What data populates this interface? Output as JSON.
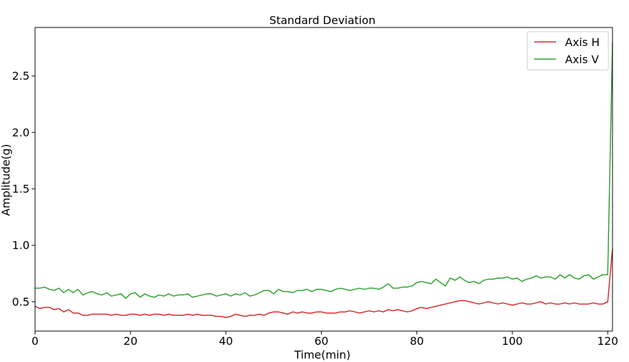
{
  "chart_data": {
    "type": "line",
    "title": "Standard Deviation",
    "xlabel": "Time(min)",
    "ylabel": "Amplitude(g)",
    "xlim": [
      0,
      121
    ],
    "ylim": [
      0.24,
      2.93
    ],
    "xticks": [
      0,
      20,
      40,
      60,
      80,
      100,
      120
    ],
    "yticks": [
      0.5,
      1.0,
      1.5,
      2.0,
      2.5
    ],
    "ytick_labels": [
      "0.5",
      "1.0",
      "1.5",
      "2.0",
      "2.5"
    ],
    "grid": false,
    "legend_position": "top-right",
    "series": [
      {
        "name": "Axis H",
        "color": "#d62728",
        "x": [
          0,
          1,
          2,
          3,
          4,
          5,
          6,
          7,
          8,
          9,
          10,
          11,
          12,
          13,
          14,
          15,
          16,
          17,
          18,
          19,
          20,
          21,
          22,
          23,
          24,
          25,
          26,
          27,
          28,
          29,
          30,
          31,
          32,
          33,
          34,
          35,
          36,
          37,
          38,
          39,
          40,
          41,
          42,
          43,
          44,
          45,
          46,
          47,
          48,
          49,
          50,
          51,
          52,
          53,
          54,
          55,
          56,
          57,
          58,
          59,
          60,
          61,
          62,
          63,
          64,
          65,
          66,
          67,
          68,
          69,
          70,
          71,
          72,
          73,
          74,
          75,
          76,
          77,
          78,
          79,
          80,
          81,
          82,
          83,
          84,
          85,
          86,
          87,
          88,
          89,
          90,
          91,
          92,
          93,
          94,
          95,
          96,
          97,
          98,
          99,
          100,
          101,
          102,
          103,
          104,
          105,
          106,
          107,
          108,
          109,
          110,
          111,
          112,
          113,
          114,
          115,
          116,
          117,
          118,
          119,
          120,
          121
        ],
        "values": [
          0.46,
          0.44,
          0.45,
          0.45,
          0.43,
          0.44,
          0.41,
          0.43,
          0.4,
          0.4,
          0.38,
          0.38,
          0.39,
          0.39,
          0.39,
          0.39,
          0.38,
          0.39,
          0.38,
          0.38,
          0.39,
          0.39,
          0.38,
          0.39,
          0.38,
          0.39,
          0.39,
          0.38,
          0.39,
          0.38,
          0.38,
          0.38,
          0.39,
          0.38,
          0.39,
          0.38,
          0.38,
          0.38,
          0.37,
          0.37,
          0.36,
          0.37,
          0.39,
          0.38,
          0.37,
          0.38,
          0.38,
          0.39,
          0.38,
          0.4,
          0.41,
          0.41,
          0.4,
          0.39,
          0.41,
          0.4,
          0.41,
          0.4,
          0.4,
          0.41,
          0.41,
          0.4,
          0.4,
          0.4,
          0.41,
          0.41,
          0.42,
          0.41,
          0.4,
          0.41,
          0.42,
          0.41,
          0.42,
          0.41,
          0.43,
          0.42,
          0.43,
          0.42,
          0.41,
          0.42,
          0.44,
          0.45,
          0.44,
          0.45,
          0.46,
          0.47,
          0.48,
          0.49,
          0.5,
          0.51,
          0.51,
          0.5,
          0.49,
          0.48,
          0.49,
          0.5,
          0.49,
          0.48,
          0.49,
          0.48,
          0.47,
          0.48,
          0.49,
          0.48,
          0.48,
          0.49,
          0.5,
          0.48,
          0.49,
          0.48,
          0.48,
          0.49,
          0.48,
          0.49,
          0.48,
          0.48,
          0.48,
          0.49,
          0.48,
          0.48,
          0.5,
          0.97
        ]
      },
      {
        "name": "Axis V",
        "color": "#2ca02c",
        "x": [
          0,
          1,
          2,
          3,
          4,
          5,
          6,
          7,
          8,
          9,
          10,
          11,
          12,
          13,
          14,
          15,
          16,
          17,
          18,
          19,
          20,
          21,
          22,
          23,
          24,
          25,
          26,
          27,
          28,
          29,
          30,
          31,
          32,
          33,
          34,
          35,
          36,
          37,
          38,
          39,
          40,
          41,
          42,
          43,
          44,
          45,
          46,
          47,
          48,
          49,
          50,
          51,
          52,
          53,
          54,
          55,
          56,
          57,
          58,
          59,
          60,
          61,
          62,
          63,
          64,
          65,
          66,
          67,
          68,
          69,
          70,
          71,
          72,
          73,
          74,
          75,
          76,
          77,
          78,
          79,
          80,
          81,
          82,
          83,
          84,
          85,
          86,
          87,
          88,
          89,
          90,
          91,
          92,
          93,
          94,
          95,
          96,
          97,
          98,
          99,
          100,
          101,
          102,
          103,
          104,
          105,
          106,
          107,
          108,
          109,
          110,
          111,
          112,
          113,
          114,
          115,
          116,
          117,
          118,
          119,
          120,
          121
        ],
        "values": [
          0.62,
          0.62,
          0.63,
          0.61,
          0.6,
          0.62,
          0.58,
          0.61,
          0.58,
          0.61,
          0.56,
          0.58,
          0.59,
          0.57,
          0.56,
          0.58,
          0.55,
          0.56,
          0.57,
          0.53,
          0.57,
          0.58,
          0.54,
          0.57,
          0.55,
          0.54,
          0.56,
          0.55,
          0.57,
          0.55,
          0.56,
          0.56,
          0.57,
          0.54,
          0.55,
          0.56,
          0.57,
          0.57,
          0.55,
          0.56,
          0.57,
          0.55,
          0.57,
          0.56,
          0.58,
          0.55,
          0.56,
          0.58,
          0.6,
          0.6,
          0.57,
          0.61,
          0.59,
          0.59,
          0.58,
          0.6,
          0.6,
          0.61,
          0.59,
          0.61,
          0.61,
          0.6,
          0.59,
          0.61,
          0.62,
          0.61,
          0.6,
          0.61,
          0.62,
          0.61,
          0.62,
          0.62,
          0.61,
          0.63,
          0.66,
          0.62,
          0.62,
          0.63,
          0.63,
          0.64,
          0.67,
          0.68,
          0.67,
          0.66,
          0.7,
          0.67,
          0.64,
          0.71,
          0.69,
          0.72,
          0.69,
          0.67,
          0.68,
          0.66,
          0.69,
          0.7,
          0.7,
          0.71,
          0.71,
          0.72,
          0.7,
          0.71,
          0.68,
          0.7,
          0.71,
          0.73,
          0.71,
          0.72,
          0.72,
          0.7,
          0.74,
          0.71,
          0.74,
          0.71,
          0.7,
          0.73,
          0.74,
          0.7,
          0.72,
          0.74,
          0.74,
          2.8
        ]
      }
    ]
  }
}
